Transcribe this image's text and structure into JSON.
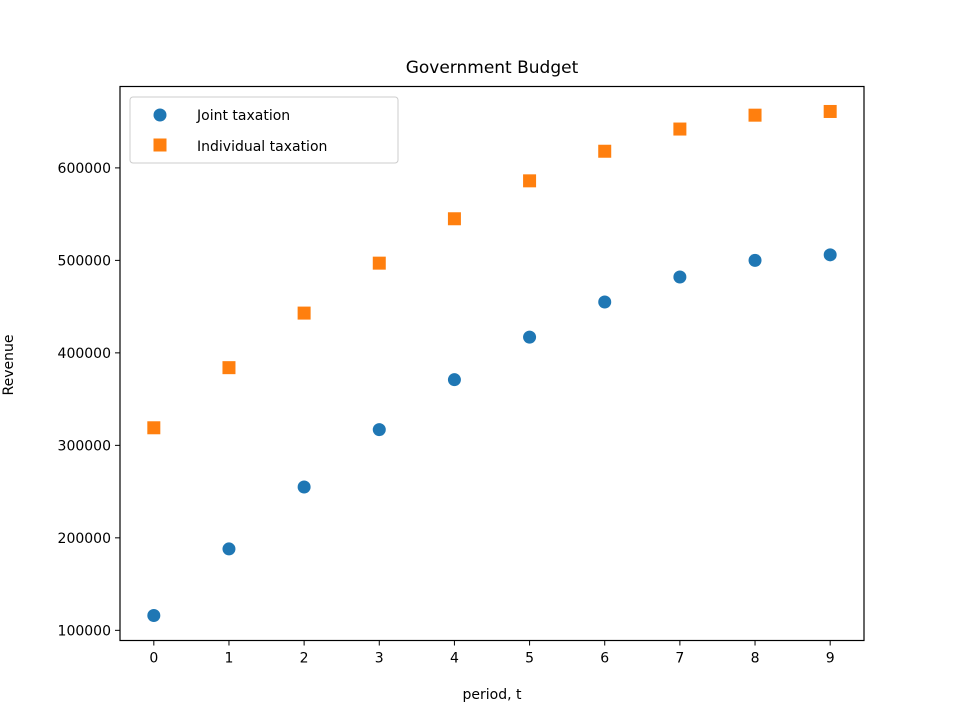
{
  "chart_data": {
    "type": "scatter",
    "title": "Government Budget",
    "xlabel": "period, t",
    "ylabel": "Revenue",
    "x": [
      0,
      1,
      2,
      3,
      4,
      5,
      6,
      7,
      8,
      9
    ],
    "xlim": [
      -0.45,
      9.45
    ],
    "ylim": [
      89000,
      688000
    ],
    "xticks": [
      0,
      1,
      2,
      3,
      4,
      5,
      6,
      7,
      8,
      9
    ],
    "xtick_labels": [
      "0",
      "1",
      "2",
      "3",
      "4",
      "5",
      "6",
      "7",
      "8",
      "9"
    ],
    "yticks": [
      100000,
      200000,
      300000,
      400000,
      500000,
      600000
    ],
    "ytick_labels": [
      "100000",
      "200000",
      "300000",
      "400000",
      "500000",
      "600000"
    ],
    "grid": false,
    "legend_position": "top-left",
    "series": [
      {
        "name": "Joint taxation",
        "marker": "circle",
        "color": "#1f77b4",
        "values": [
          116000,
          188000,
          255000,
          317000,
          371000,
          417000,
          455000,
          482000,
          500000,
          506000
        ]
      },
      {
        "name": "Individual taxation",
        "marker": "square",
        "color": "#ff7f0e",
        "values": [
          319000,
          384000,
          443000,
          497000,
          545000,
          586000,
          618000,
          642000,
          657000,
          661000
        ]
      }
    ]
  }
}
